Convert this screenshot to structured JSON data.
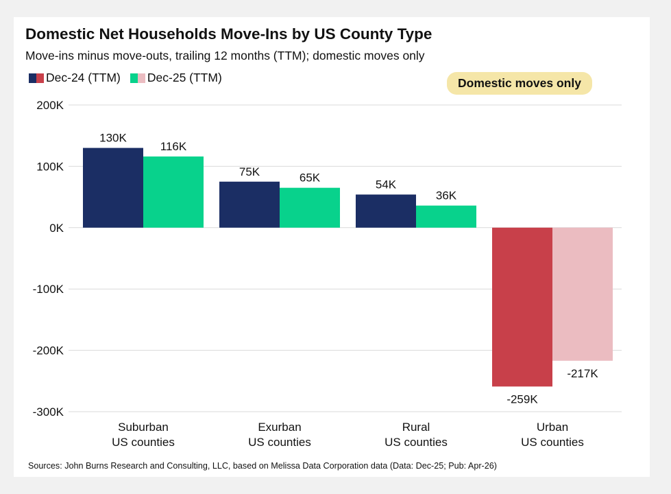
{
  "title": "Domestic Net Households Move-Ins by US County Type",
  "subtitle": "Move-ins minus move-outs, trailing 12 months (TTM); domestic moves only",
  "badge": "Domestic moves only",
  "source": "Sources: John Burns Research and Consulting, LLC, based on Melissa Data Corporation data (Data: Dec-25; Pub: Apr-26)",
  "colors": {
    "dec24_positive": "#1b2e64",
    "dec25_positive": "#08d28c",
    "dec24_negative": "#c8404a",
    "dec25_negative": "#ebbcc1",
    "badge_bg": "#f5e6a8",
    "gridline": "#d9d9d9"
  },
  "chart_data": {
    "type": "bar",
    "categories": [
      [
        "Suburban",
        "US counties"
      ],
      [
        "Exurban",
        "US counties"
      ],
      [
        "Rural",
        "US counties"
      ],
      [
        "Urban",
        "US counties"
      ]
    ],
    "series": [
      {
        "name": "Dec-24 (TTM)",
        "values": [
          130000,
          75000,
          54000,
          -259000
        ],
        "labels": [
          "130K",
          "75K",
          "54K",
          "-259K"
        ]
      },
      {
        "name": "Dec-25 (TTM)",
        "values": [
          116000,
          65000,
          36000,
          -217000
        ],
        "labels": [
          "116K",
          "65K",
          "36K",
          "-217K"
        ]
      }
    ],
    "ylim": [
      -300000,
      200000
    ],
    "yticks": [
      200000,
      100000,
      0,
      -100000,
      -200000,
      -300000
    ],
    "ytick_labels": [
      "200K",
      "100K",
      "0K",
      "-100K",
      "-200K",
      "-300K"
    ],
    "grid": true,
    "legend_position": "top-left"
  }
}
